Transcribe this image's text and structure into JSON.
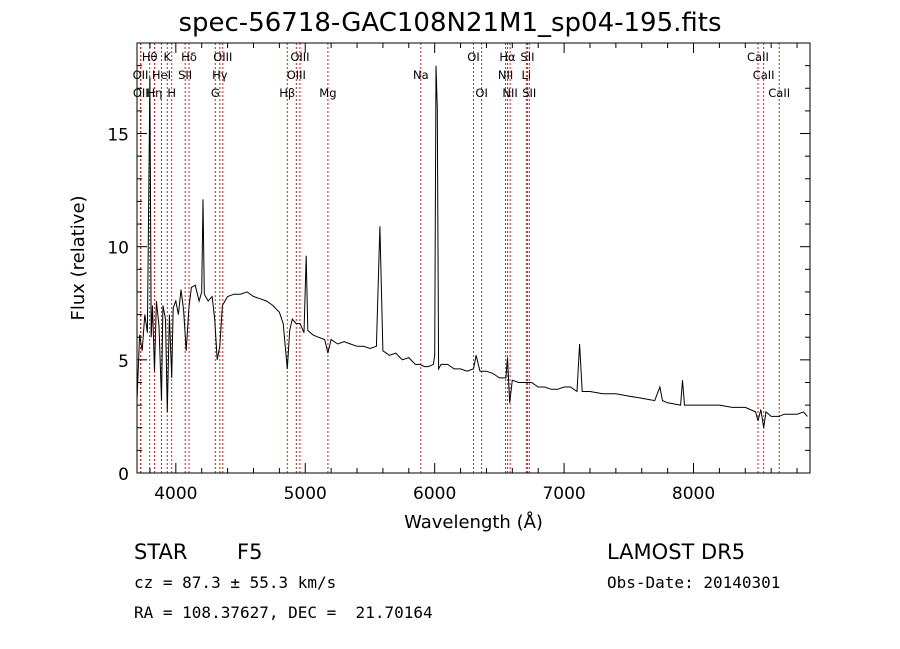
{
  "chart_data": {
    "type": "line",
    "title": "spec-56718-GAC108N21M1_sp04-195.fits",
    "xlabel": "Wavelength (Å)",
    "ylabel": "Flux (relative)",
    "xlim": [
      3700,
      8900
    ],
    "ylim": [
      0,
      19
    ],
    "xticks": [
      4000,
      5000,
      6000,
      7000,
      8000
    ],
    "yticks": [
      0,
      5,
      10,
      15
    ],
    "line_color": "#000000",
    "marker_color": "#cc2222",
    "series": [
      {
        "x": [
          3700,
          3720,
          3740,
          3760,
          3780,
          3800,
          3810,
          3820,
          3835,
          3850,
          3870,
          3889,
          3900,
          3920,
          3934,
          3950,
          3968,
          3980,
          4000,
          4020,
          4040,
          4060,
          4080,
          4101,
          4120,
          4150,
          4180,
          4200,
          4210,
          4220,
          4250,
          4280,
          4300,
          4320,
          4340,
          4360,
          4380,
          4400,
          4450,
          4500,
          4550,
          4600,
          4650,
          4700,
          4750,
          4800,
          4830,
          4861,
          4880,
          4900,
          4930,
          4960,
          4990,
          5007,
          5020,
          5060,
          5100,
          5150,
          5175,
          5200,
          5250,
          5300,
          5350,
          5400,
          5450,
          5500,
          5550,
          5577,
          5600,
          5650,
          5700,
          5750,
          5800,
          5850,
          5890,
          5920,
          5950,
          5990,
          6000,
          6010,
          6020,
          6030,
          6050,
          6100,
          6150,
          6200,
          6250,
          6300,
          6320,
          6350,
          6400,
          6450,
          6500,
          6550,
          6563,
          6580,
          6600,
          6650,
          6700,
          6750,
          6800,
          6850,
          6900,
          6950,
          7000,
          7050,
          7100,
          7120,
          7140,
          7200,
          7300,
          7400,
          7500,
          7600,
          7700,
          7740,
          7760,
          7800,
          7900,
          7915,
          7930,
          8000,
          8100,
          8200,
          8300,
          8400,
          8480,
          8498,
          8520,
          8542,
          8560,
          8600,
          8662,
          8700,
          8750,
          8800,
          8850,
          8880
        ],
        "y": [
          3.2,
          6.1,
          5.4,
          7.0,
          6.2,
          17.5,
          6.0,
          7.4,
          4.5,
          7.6,
          6.5,
          3.2,
          7.4,
          6.8,
          2.7,
          7.0,
          4.2,
          7.3,
          7.6,
          7.0,
          8.1,
          7.2,
          5.4,
          7.3,
          8.2,
          8.3,
          7.6,
          8.0,
          12.1,
          7.9,
          7.6,
          7.8,
          6.8,
          5.0,
          5.6,
          7.4,
          7.6,
          7.8,
          7.9,
          7.9,
          8.0,
          7.8,
          7.7,
          7.6,
          7.4,
          7.1,
          6.6,
          4.6,
          6.3,
          6.8,
          6.6,
          6.6,
          6.2,
          9.6,
          6.3,
          6.1,
          6.0,
          5.9,
          5.3,
          5.9,
          5.7,
          5.8,
          5.7,
          5.6,
          5.6,
          5.5,
          5.6,
          10.9,
          5.4,
          5.2,
          5.3,
          5.0,
          5.1,
          4.8,
          4.8,
          4.7,
          4.7,
          4.8,
          5.2,
          18.0,
          16.1,
          4.6,
          4.8,
          4.8,
          4.6,
          4.6,
          4.5,
          4.6,
          5.2,
          4.5,
          4.5,
          4.4,
          4.2,
          4.2,
          5.1,
          3.1,
          4.1,
          4.0,
          4.0,
          4.0,
          3.8,
          3.8,
          3.7,
          3.7,
          3.8,
          3.8,
          3.6,
          5.7,
          3.6,
          3.6,
          3.5,
          3.5,
          3.4,
          3.3,
          3.2,
          3.8,
          3.2,
          3.1,
          3.0,
          4.1,
          3.0,
          3.0,
          3.0,
          3.0,
          2.9,
          2.9,
          2.7,
          2.3,
          2.8,
          2.0,
          2.7,
          2.5,
          2.5,
          2.6,
          2.6,
          2.6,
          2.7,
          2.5
        ]
      }
    ],
    "line_markers": [
      {
        "label": "Hθ",
        "x": 3798,
        "row": 0
      },
      {
        "label": "K",
        "x": 3934,
        "row": 0
      },
      {
        "label": "Hδ",
        "x": 4102,
        "row": 0
      },
      {
        "label": "OIII",
        "x": 4363,
        "row": 0
      },
      {
        "label": "OIII",
        "x": 4959,
        "row": 0
      },
      {
        "label": "OI",
        "x": 6300,
        "row": 0
      },
      {
        "label": "Hα",
        "x": 6563,
        "row": 0
      },
      {
        "label": "SII",
        "x": 6717,
        "row": 0
      },
      {
        "label": "CaII",
        "x": 8498,
        "row": 0
      },
      {
        "label": "OII",
        "x": 3727,
        "row": 1
      },
      {
        "label": "HeI",
        "x": 3889,
        "row": 1
      },
      {
        "label": "SII",
        "x": 4072,
        "row": 1
      },
      {
        "label": "Hγ",
        "x": 4340,
        "row": 1
      },
      {
        "label": "OIII",
        "x": 4931,
        "row": 1
      },
      {
        "label": "Na",
        "x": 5893,
        "row": 1
      },
      {
        "label": "NII",
        "x": 6548,
        "row": 1
      },
      {
        "label": "Li",
        "x": 6708,
        "row": 1
      },
      {
        "label": "CaII",
        "x": 8542,
        "row": 1
      },
      {
        "label": "OII",
        "x": 3729,
        "row": 2
      },
      {
        "label": "Hη",
        "x": 3835,
        "row": 2
      },
      {
        "label": "H",
        "x": 3968,
        "row": 2
      },
      {
        "label": "G",
        "x": 4305,
        "row": 2
      },
      {
        "label": "Hβ",
        "x": 4861,
        "row": 2
      },
      {
        "label": "Mg",
        "x": 5175,
        "row": 2
      },
      {
        "label": "OI",
        "x": 6363,
        "row": 2
      },
      {
        "label": "NII",
        "x": 6583,
        "row": 2
      },
      {
        "label": "SII",
        "x": 6731,
        "row": 2
      },
      {
        "label": "CaII",
        "x": 8662,
        "row": 2
      }
    ]
  },
  "info": {
    "class": "STAR",
    "subclass": "F5",
    "survey": "LAMOST DR5",
    "cz": "cz = 87.3 ± 55.3 km/s",
    "obs_date": "Obs-Date: 20140301",
    "radec": "RA = 108.37627, DEC =  21.70164"
  }
}
